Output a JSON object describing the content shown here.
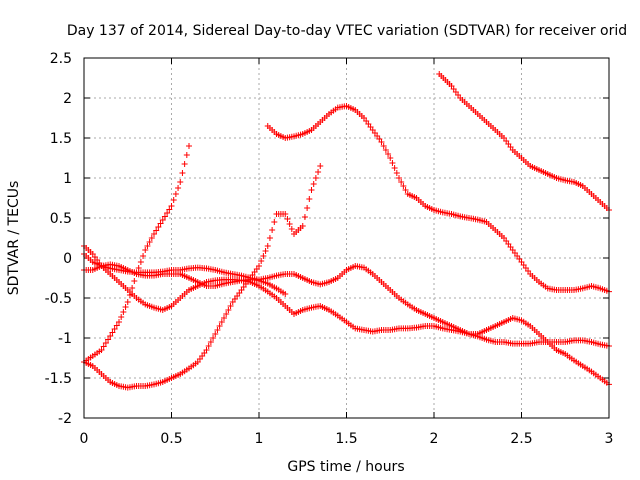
{
  "chart_data": {
    "type": "scatter",
    "title": "Day 137 of 2014, Sidereal Day-to-day VTEC variation (SDTVAR) for receiver orid",
    "xlabel": "GPS time / hours",
    "ylabel": "SDTVAR / TECUs",
    "xlim": [
      0,
      3
    ],
    "ylim": [
      -2,
      2.5
    ],
    "xticks": [
      0,
      0.5,
      1,
      1.5,
      2,
      2.5,
      3
    ],
    "xtick_labels": [
      "0",
      "0.5",
      "1",
      "1.5",
      "2",
      "2.5",
      "3"
    ],
    "yticks": [
      -2,
      -1.5,
      -1,
      -0.5,
      0,
      0.5,
      1,
      1.5,
      2,
      2.5
    ],
    "ytick_labels": [
      "-2",
      "-1.5",
      "-1",
      "-0.5",
      "0",
      "0.5",
      "1",
      "1.5",
      "2",
      "2.5"
    ],
    "grid": true,
    "marker": "+",
    "color": "#ff0000",
    "series": [
      {
        "name": "s1",
        "points": [
          [
            0,
            -1.3
          ],
          [
            0.1,
            -1.15
          ],
          [
            0.2,
            -0.8
          ],
          [
            0.25,
            -0.55
          ],
          [
            0.3,
            -0.2
          ],
          [
            0.35,
            0.1
          ],
          [
            0.4,
            0.3
          ],
          [
            0.5,
            0.65
          ],
          [
            0.55,
            0.95
          ],
          [
            0.6,
            1.4
          ]
        ]
      },
      {
        "name": "s2",
        "points": [
          [
            0,
            -1.3
          ],
          [
            0.05,
            -1.35
          ],
          [
            0.1,
            -1.45
          ],
          [
            0.15,
            -1.55
          ],
          [
            0.2,
            -1.6
          ],
          [
            0.25,
            -1.62
          ],
          [
            0.3,
            -1.6
          ],
          [
            0.35,
            -1.6
          ],
          [
            0.4,
            -1.58
          ],
          [
            0.45,
            -1.55
          ],
          [
            0.5,
            -1.5
          ],
          [
            0.55,
            -1.45
          ],
          [
            0.6,
            -1.38
          ],
          [
            0.65,
            -1.3
          ],
          [
            0.7,
            -1.15
          ],
          [
            0.75,
            -0.95
          ],
          [
            0.8,
            -0.75
          ],
          [
            0.85,
            -0.55
          ],
          [
            0.9,
            -0.4
          ],
          [
            0.95,
            -0.25
          ],
          [
            1.0,
            -0.1
          ],
          [
            1.05,
            0.15
          ],
          [
            1.1,
            0.55
          ],
          [
            1.15,
            0.55
          ],
          [
            1.2,
            0.3
          ],
          [
            1.25,
            0.4
          ],
          [
            1.3,
            0.85
          ],
          [
            1.35,
            1.15
          ]
        ]
      },
      {
        "name": "s3",
        "points": [
          [
            1.05,
            1.65
          ],
          [
            1.1,
            1.55
          ],
          [
            1.15,
            1.5
          ],
          [
            1.2,
            1.52
          ],
          [
            1.25,
            1.55
          ],
          [
            1.3,
            1.6
          ],
          [
            1.35,
            1.7
          ],
          [
            1.4,
            1.8
          ],
          [
            1.45,
            1.88
          ],
          [
            1.5,
            1.9
          ],
          [
            1.55,
            1.85
          ],
          [
            1.6,
            1.75
          ],
          [
            1.65,
            1.6
          ],
          [
            1.7,
            1.45
          ],
          [
            1.75,
            1.25
          ],
          [
            1.8,
            1.0
          ],
          [
            1.85,
            0.8
          ],
          [
            1.9,
            0.75
          ],
          [
            1.95,
            0.65
          ],
          [
            2.0,
            0.6
          ],
          [
            2.05,
            0.57
          ],
          [
            2.1,
            0.55
          ],
          [
            2.15,
            0.52
          ],
          [
            2.2,
            0.5
          ],
          [
            2.25,
            0.48
          ],
          [
            2.3,
            0.45
          ],
          [
            2.35,
            0.35
          ],
          [
            2.4,
            0.25
          ],
          [
            2.45,
            0.1
          ],
          [
            2.5,
            -0.05
          ],
          [
            2.55,
            -0.2
          ],
          [
            2.6,
            -0.3
          ],
          [
            2.65,
            -0.38
          ],
          [
            2.7,
            -0.4
          ],
          [
            2.75,
            -0.4
          ],
          [
            2.8,
            -0.4
          ],
          [
            2.85,
            -0.38
          ],
          [
            2.9,
            -0.35
          ],
          [
            2.95,
            -0.38
          ],
          [
            3.0,
            -0.42
          ]
        ]
      },
      {
        "name": "s4",
        "points": [
          [
            2.03,
            2.3
          ],
          [
            2.1,
            2.15
          ],
          [
            2.15,
            2.0
          ],
          [
            2.2,
            1.9
          ],
          [
            2.25,
            1.8
          ],
          [
            2.3,
            1.7
          ],
          [
            2.35,
            1.6
          ],
          [
            2.4,
            1.5
          ],
          [
            2.45,
            1.35
          ],
          [
            2.5,
            1.25
          ],
          [
            2.55,
            1.15
          ],
          [
            2.6,
            1.1
          ],
          [
            2.65,
            1.05
          ],
          [
            2.7,
            1.0
          ],
          [
            2.75,
            0.97
          ],
          [
            2.8,
            0.95
          ],
          [
            2.85,
            0.9
          ],
          [
            2.9,
            0.8
          ],
          [
            2.95,
            0.7
          ],
          [
            3.0,
            0.6
          ]
        ]
      },
      {
        "name": "s5",
        "points": [
          [
            0,
            0.15
          ],
          [
            0.05,
            0.05
          ],
          [
            0.1,
            -0.1
          ],
          [
            0.15,
            -0.2
          ],
          [
            0.2,
            -0.3
          ],
          [
            0.25,
            -0.4
          ],
          [
            0.3,
            -0.5
          ],
          [
            0.35,
            -0.58
          ],
          [
            0.4,
            -0.62
          ],
          [
            0.45,
            -0.65
          ],
          [
            0.5,
            -0.6
          ],
          [
            0.55,
            -0.5
          ],
          [
            0.6,
            -0.4
          ],
          [
            0.65,
            -0.35
          ],
          [
            0.7,
            -0.3
          ],
          [
            0.75,
            -0.28
          ],
          [
            0.8,
            -0.27
          ],
          [
            0.85,
            -0.27
          ],
          [
            0.9,
            -0.28
          ],
          [
            0.95,
            -0.3
          ],
          [
            1.0,
            -0.35
          ],
          [
            1.05,
            -0.42
          ],
          [
            1.1,
            -0.5
          ],
          [
            1.15,
            -0.6
          ],
          [
            1.2,
            -0.7
          ],
          [
            1.25,
            -0.65
          ],
          [
            1.3,
            -0.62
          ],
          [
            1.35,
            -0.6
          ],
          [
            1.4,
            -0.65
          ],
          [
            1.45,
            -0.72
          ],
          [
            1.5,
            -0.8
          ],
          [
            1.55,
            -0.88
          ],
          [
            1.6,
            -0.9
          ],
          [
            1.65,
            -0.92
          ],
          [
            1.7,
            -0.9
          ],
          [
            1.75,
            -0.9
          ],
          [
            1.8,
            -0.88
          ],
          [
            1.85,
            -0.88
          ],
          [
            1.9,
            -0.87
          ],
          [
            1.95,
            -0.85
          ],
          [
            2.0,
            -0.85
          ],
          [
            2.05,
            -0.88
          ],
          [
            2.1,
            -0.9
          ],
          [
            2.15,
            -0.92
          ],
          [
            2.2,
            -0.95
          ],
          [
            2.25,
            -0.95
          ],
          [
            2.3,
            -0.9
          ],
          [
            2.35,
            -0.85
          ],
          [
            2.4,
            -0.8
          ],
          [
            2.45,
            -0.75
          ],
          [
            2.5,
            -0.78
          ],
          [
            2.55,
            -0.85
          ],
          [
            2.6,
            -0.95
          ],
          [
            2.65,
            -1.05
          ],
          [
            2.7,
            -1.15
          ],
          [
            2.75,
            -1.2
          ],
          [
            2.8,
            -1.28
          ],
          [
            2.85,
            -1.35
          ],
          [
            2.9,
            -1.42
          ],
          [
            2.95,
            -1.5
          ],
          [
            3.0,
            -1.58
          ]
        ]
      },
      {
        "name": "s6",
        "points": [
          [
            0,
            0.05
          ],
          [
            0.05,
            -0.05
          ],
          [
            0.1,
            -0.1
          ],
          [
            0.15,
            -0.13
          ],
          [
            0.2,
            -0.15
          ],
          [
            0.25,
            -0.17
          ],
          [
            0.3,
            -0.18
          ],
          [
            0.35,
            -0.18
          ],
          [
            0.4,
            -0.18
          ],
          [
            0.45,
            -0.17
          ],
          [
            0.5,
            -0.15
          ],
          [
            0.55,
            -0.15
          ],
          [
            0.6,
            -0.13
          ],
          [
            0.65,
            -0.12
          ],
          [
            0.7,
            -0.13
          ],
          [
            0.75,
            -0.15
          ],
          [
            0.8,
            -0.18
          ],
          [
            0.85,
            -0.2
          ],
          [
            0.9,
            -0.22
          ],
          [
            0.95,
            -0.25
          ],
          [
            1.0,
            -0.27
          ],
          [
            1.05,
            -0.25
          ],
          [
            1.1,
            -0.22
          ],
          [
            1.15,
            -0.2
          ],
          [
            1.2,
            -0.2
          ],
          [
            1.25,
            -0.25
          ],
          [
            1.3,
            -0.3
          ],
          [
            1.35,
            -0.33
          ],
          [
            1.4,
            -0.3
          ],
          [
            1.45,
            -0.25
          ],
          [
            1.5,
            -0.15
          ],
          [
            1.55,
            -0.1
          ],
          [
            1.6,
            -0.12
          ],
          [
            1.65,
            -0.2
          ],
          [
            1.7,
            -0.3
          ],
          [
            1.75,
            -0.4
          ],
          [
            1.8,
            -0.5
          ],
          [
            1.85,
            -0.58
          ],
          [
            1.9,
            -0.65
          ],
          [
            1.95,
            -0.7
          ],
          [
            2.0,
            -0.75
          ],
          [
            2.05,
            -0.8
          ],
          [
            2.1,
            -0.85
          ],
          [
            2.15,
            -0.9
          ],
          [
            2.2,
            -0.95
          ],
          [
            2.25,
            -0.98
          ],
          [
            2.3,
            -1.02
          ],
          [
            2.35,
            -1.05
          ],
          [
            2.4,
            -1.05
          ],
          [
            2.45,
            -1.07
          ],
          [
            2.5,
            -1.07
          ],
          [
            2.55,
            -1.07
          ],
          [
            2.6,
            -1.05
          ],
          [
            2.65,
            -1.05
          ],
          [
            2.7,
            -1.05
          ],
          [
            2.75,
            -1.05
          ],
          [
            2.8,
            -1.03
          ],
          [
            2.85,
            -1.03
          ],
          [
            2.9,
            -1.05
          ],
          [
            2.95,
            -1.08
          ],
          [
            3.0,
            -1.1
          ]
        ]
      },
      {
        "name": "s7",
        "points": [
          [
            0,
            -0.15
          ],
          [
            0.05,
            -0.15
          ],
          [
            0.1,
            -0.1
          ],
          [
            0.15,
            -0.08
          ],
          [
            0.2,
            -0.1
          ],
          [
            0.25,
            -0.15
          ],
          [
            0.3,
            -0.2
          ],
          [
            0.35,
            -0.22
          ],
          [
            0.4,
            -0.22
          ],
          [
            0.45,
            -0.2
          ],
          [
            0.5,
            -0.2
          ],
          [
            0.55,
            -0.2
          ],
          [
            0.6,
            -0.25
          ],
          [
            0.65,
            -0.3
          ],
          [
            0.7,
            -0.35
          ],
          [
            0.75,
            -0.35
          ],
          [
            0.8,
            -0.32
          ],
          [
            0.85,
            -0.3
          ],
          [
            0.9,
            -0.28
          ],
          [
            0.95,
            -0.27
          ],
          [
            1.0,
            -0.28
          ],
          [
            1.05,
            -0.32
          ],
          [
            1.1,
            -0.38
          ],
          [
            1.15,
            -0.45
          ]
        ]
      }
    ]
  }
}
